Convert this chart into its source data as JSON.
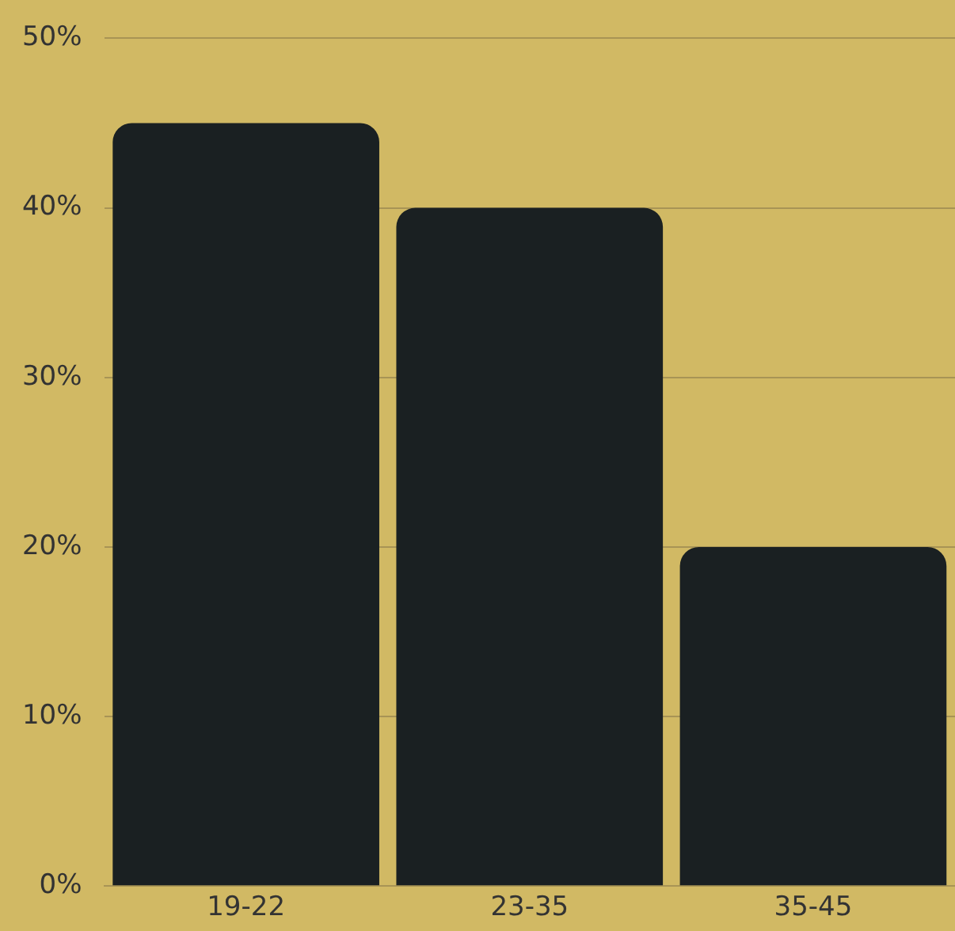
{
  "chart_data": {
    "type": "bar",
    "categories": [
      "19-22",
      "23-35",
      "35-45"
    ],
    "values": [
      45,
      40,
      20
    ],
    "color": "#1a2022",
    "ylim": [
      0,
      50
    ],
    "yticks": [
      {
        "value": 0,
        "label": "0%"
      },
      {
        "value": 10,
        "label": "10%"
      },
      {
        "value": 20,
        "label": "20%"
      },
      {
        "value": 30,
        "label": "30%"
      },
      {
        "value": 40,
        "label": "40%"
      },
      {
        "value": 50,
        "label": "50%"
      }
    ],
    "grid": "y",
    "legend": false
  }
}
